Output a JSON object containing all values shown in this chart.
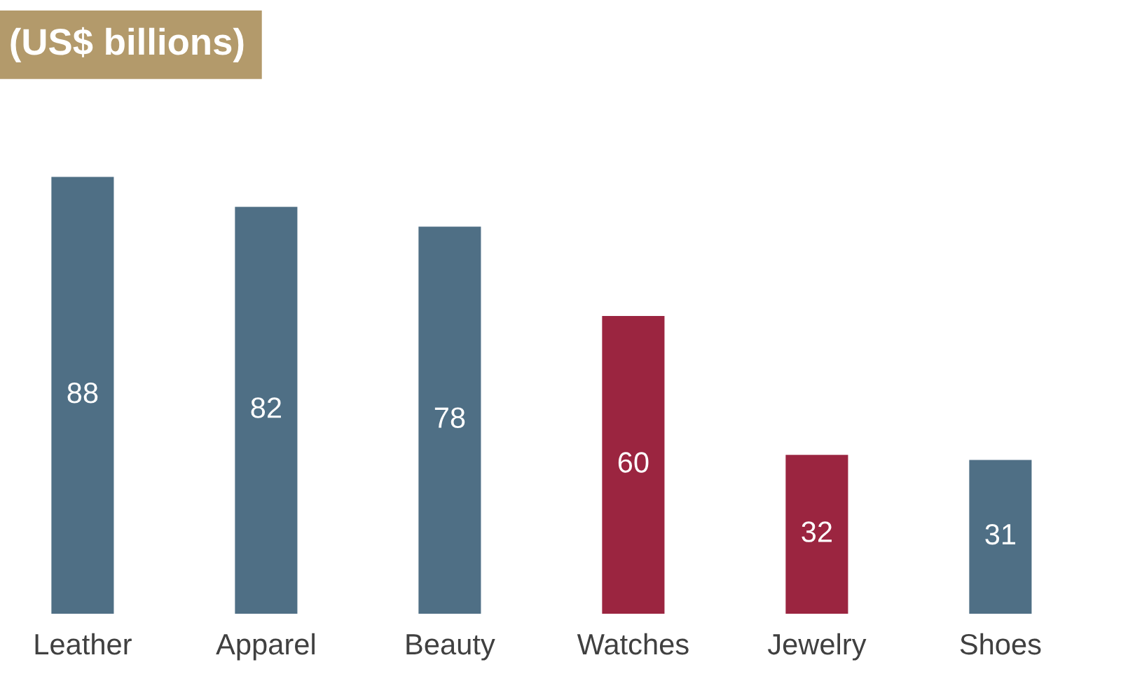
{
  "chart_data": {
    "type": "bar",
    "title": "(US$ billions)",
    "categories": [
      "Leather",
      "Apparel",
      "Beauty",
      "Watches",
      "Jewelry",
      "Shoes"
    ],
    "values": [
      88,
      82,
      78,
      60,
      32,
      31
    ],
    "colors": [
      "#4f6f85",
      "#4f6f85",
      "#4f6f85",
      "#9b2540",
      "#9b2540",
      "#4f6f85"
    ],
    "data_labels": true,
    "grid": false,
    "legend": false
  }
}
